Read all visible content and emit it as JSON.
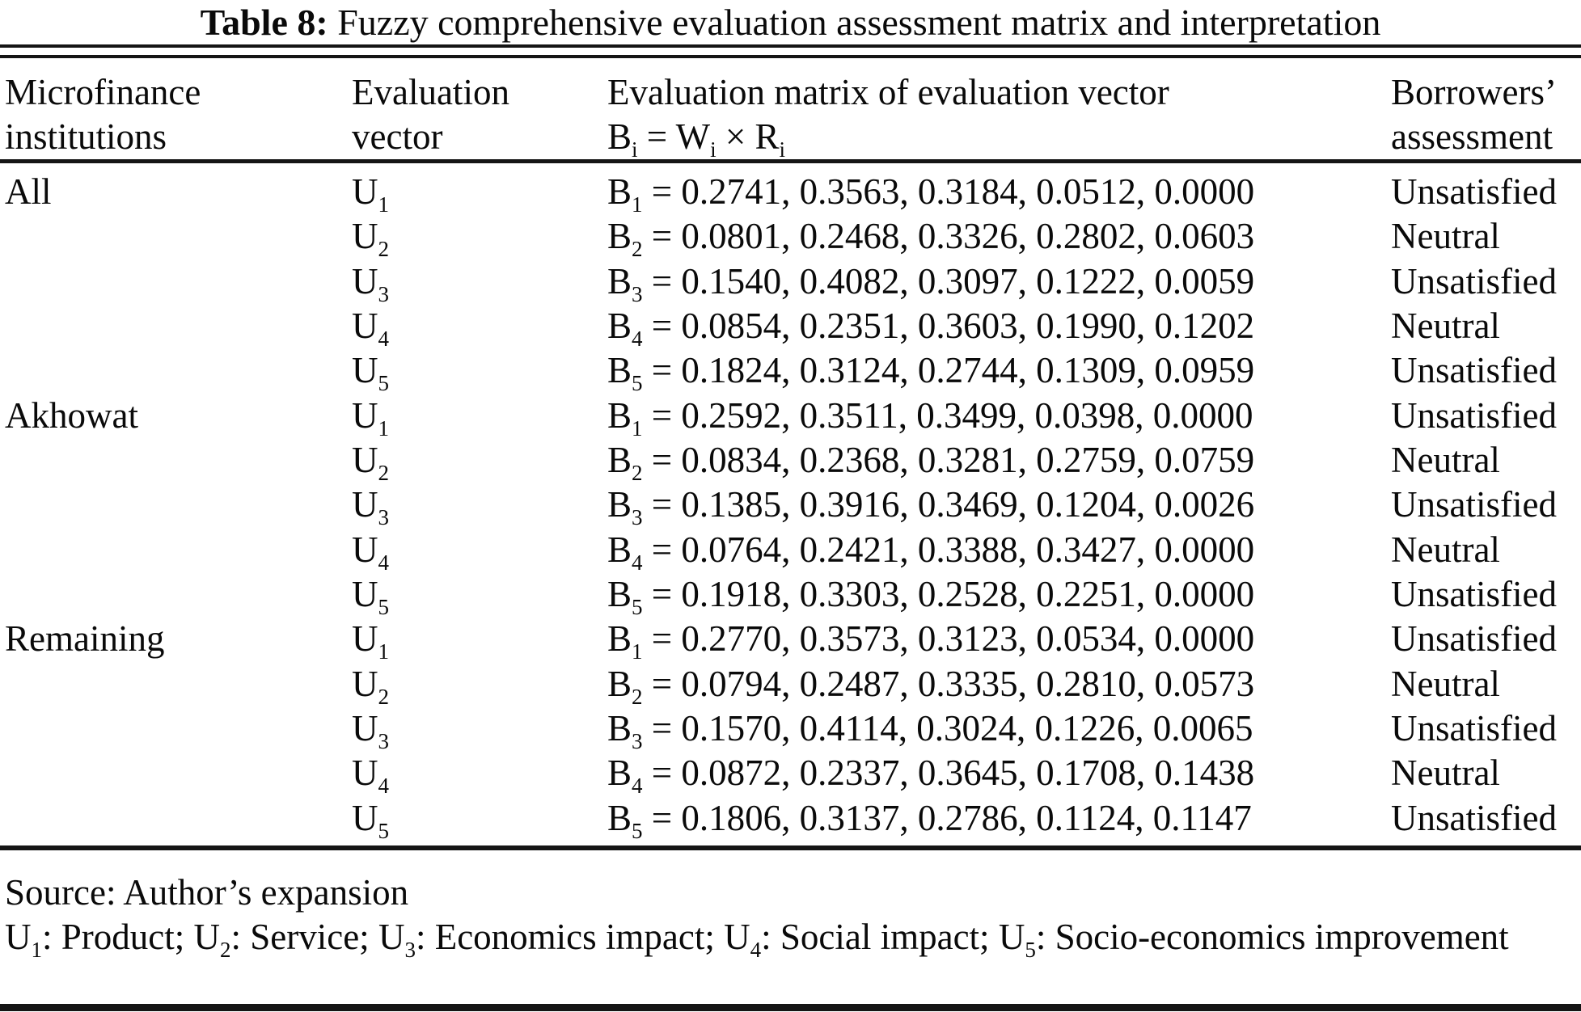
{
  "title": {
    "label": "Table 8:",
    "text": " Fuzzy comprehensive evaluation assessment matrix and interpretation"
  },
  "header": {
    "col1_line1": "Microfinance",
    "col1_line2": "institutions",
    "col2_line1": "Evaluation",
    "col2_line2": "vector",
    "col3_line1": "Evaluation matrix of evaluation vector",
    "col3_eq": {
      "b": "B",
      "b_sub": "i",
      "eq": " = ",
      "w": "W",
      "w_sub": "i",
      "times": " × ",
      "r": "R",
      "r_sub": "i"
    },
    "col4_line1": "Borrowers’",
    "col4_line2": "assessment"
  },
  "table": {
    "rows": [
      {
        "institution": "All",
        "vector_base": "U",
        "vector_sub": "1",
        "matrix_base": "B",
        "matrix_sub": "1",
        "matrix_rest": " = 0.2741, 0.3563, 0.3184, 0.0512, 0.0000",
        "assessment": "Unsatisfied"
      },
      {
        "institution": "",
        "vector_base": "U",
        "vector_sub": "2",
        "matrix_base": "B",
        "matrix_sub": "2",
        "matrix_rest": " = 0.0801, 0.2468, 0.3326, 0.2802, 0.0603",
        "assessment": "Neutral"
      },
      {
        "institution": "",
        "vector_base": "U",
        "vector_sub": "3",
        "matrix_base": "B",
        "matrix_sub": "3",
        "matrix_rest": " = 0.1540, 0.4082, 0.3097, 0.1222, 0.0059",
        "assessment": "Unsatisfied"
      },
      {
        "institution": "",
        "vector_base": "U",
        "vector_sub": "4",
        "matrix_base": "B",
        "matrix_sub": "4",
        "matrix_rest": " = 0.0854, 0.2351, 0.3603, 0.1990, 0.1202",
        "assessment": "Neutral"
      },
      {
        "institution": "",
        "vector_base": "U",
        "vector_sub": "5",
        "matrix_base": "B",
        "matrix_sub": "5",
        "matrix_rest": " = 0.1824, 0.3124, 0.2744, 0.1309, 0.0959",
        "assessment": "Unsatisfied"
      },
      {
        "institution": "Akhowat",
        "vector_base": "U",
        "vector_sub": "1",
        "matrix_base": "B",
        "matrix_sub": "1",
        "matrix_rest": " = 0.2592, 0.3511, 0.3499, 0.0398, 0.0000",
        "assessment": "Unsatisfied"
      },
      {
        "institution": "",
        "vector_base": "U",
        "vector_sub": "2",
        "matrix_base": "B",
        "matrix_sub": "2",
        "matrix_rest": " = 0.0834, 0.2368, 0.3281, 0.2759, 0.0759",
        "assessment": "Neutral"
      },
      {
        "institution": "",
        "vector_base": "U",
        "vector_sub": "3",
        "matrix_base": "B",
        "matrix_sub": "3",
        "matrix_rest": " = 0.1385, 0.3916, 0.3469, 0.1204, 0.0026",
        "assessment": "Unsatisfied"
      },
      {
        "institution": "",
        "vector_base": "U",
        "vector_sub": "4",
        "matrix_base": "B",
        "matrix_sub": "4",
        "matrix_rest": " = 0.0764, 0.2421, 0.3388, 0.3427, 0.0000",
        "assessment": "Neutral"
      },
      {
        "institution": "",
        "vector_base": "U",
        "vector_sub": "5",
        "matrix_base": "B",
        "matrix_sub": "5",
        "matrix_rest": " = 0.1918, 0.3303, 0.2528, 0.2251, 0.0000",
        "assessment": "Unsatisfied"
      },
      {
        "institution": "Remaining",
        "vector_base": "U",
        "vector_sub": "1",
        "matrix_base": "B",
        "matrix_sub": "1",
        "matrix_rest": " = 0.2770, 0.3573, 0.3123, 0.0534, 0.0000",
        "assessment": "Unsatisfied"
      },
      {
        "institution": "",
        "vector_base": "U",
        "vector_sub": "2",
        "matrix_base": "B",
        "matrix_sub": "2",
        "matrix_rest": " = 0.0794, 0.2487, 0.3335, 0.2810, 0.0573",
        "assessment": "Neutral"
      },
      {
        "institution": "",
        "vector_base": "U",
        "vector_sub": "3",
        "matrix_base": "B",
        "matrix_sub": "3",
        "matrix_rest": " = 0.1570, 0.4114, 0.3024, 0.1226, 0.0065",
        "assessment": "Unsatisfied"
      },
      {
        "institution": "",
        "vector_base": "U",
        "vector_sub": "4",
        "matrix_base": "B",
        "matrix_sub": "4",
        "matrix_rest": " = 0.0872, 0.2337, 0.3645, 0.1708, 0.1438",
        "assessment": "Neutral"
      },
      {
        "institution": "",
        "vector_base": "U",
        "vector_sub": "5",
        "matrix_base": "B",
        "matrix_sub": "5",
        "matrix_rest": " = 0.1806, 0.3137, 0.2786, 0.1124, 0.1147",
        "assessment": "Unsatisfied"
      }
    ]
  },
  "notes": {
    "source": "Source: Author’s expansion",
    "defs": [
      {
        "base": "U",
        "sub": "1",
        "text": ": Product; "
      },
      {
        "base": "U",
        "sub": "2",
        "text": ": Service; "
      },
      {
        "base": "U",
        "sub": "3",
        "text": ": Economics impact; "
      },
      {
        "base": "U",
        "sub": "4",
        "text": ": Social impact; "
      },
      {
        "base": "U",
        "sub": "5",
        "text": ": Socio-economics improvement"
      }
    ]
  },
  "colors": {
    "background": "#ffffff",
    "text": "#0a0a0a",
    "rule": "#151515"
  }
}
